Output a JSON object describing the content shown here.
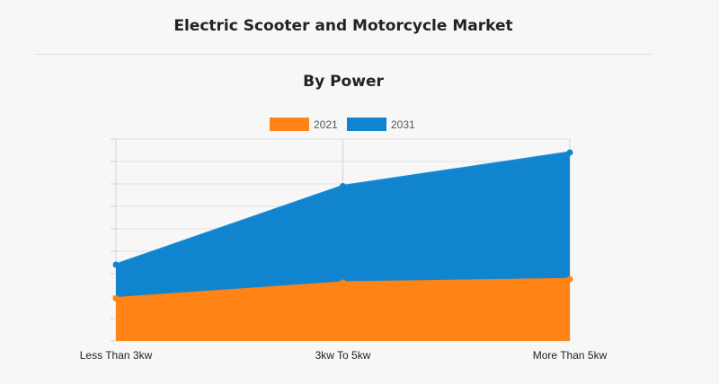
{
  "header": {
    "title": "Electric Scooter and Motorcycle Market",
    "subtitle": "By Power"
  },
  "chart_data": {
    "type": "area",
    "title": "By Power",
    "categories": [
      "Less Than 3kw",
      "3kw To 5kw",
      "More Than 5kw"
    ],
    "series": [
      {
        "name": "2021",
        "color": "#ff8415",
        "values": [
          1.9,
          2.6,
          2.75
        ]
      },
      {
        "name": "2031",
        "color": "#1184d0",
        "values": [
          3.4,
          6.9,
          8.4
        ]
      }
    ],
    "stacked": false,
    "ylim": [
      0,
      9
    ],
    "y_tick_labels_shown": false,
    "grid": true,
    "legend_position": "top-center"
  }
}
